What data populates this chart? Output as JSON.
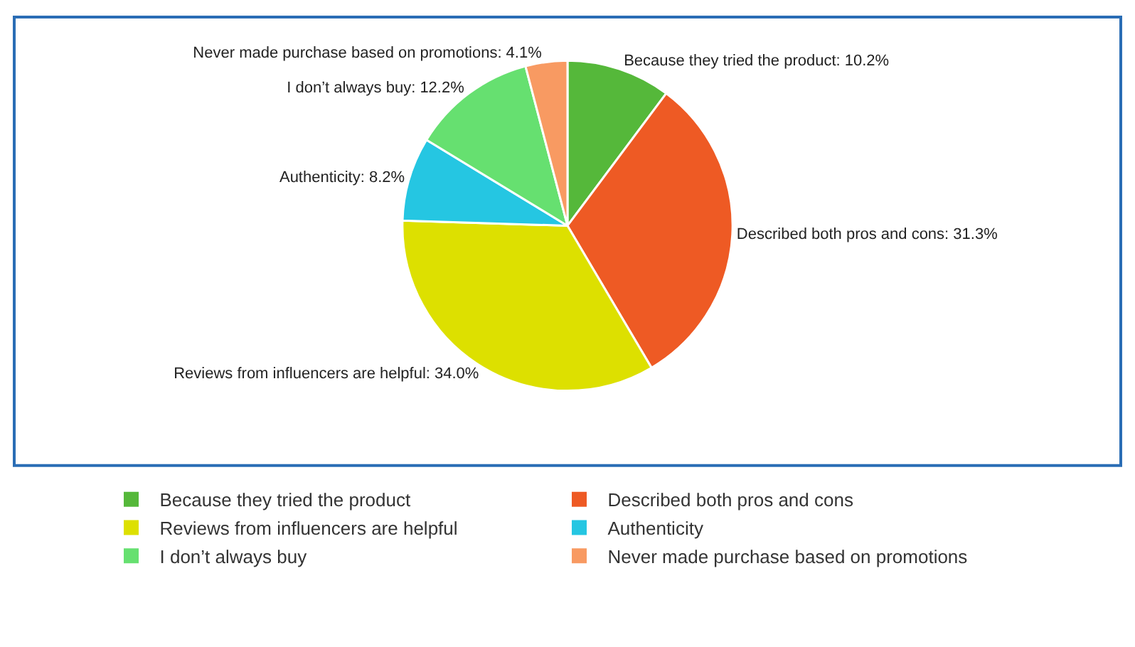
{
  "chart_data": {
    "type": "pie",
    "categories": [
      "Because they tried the product",
      "Described both pros and cons",
      "Reviews from influencers are helpful",
      "Authenticity",
      "I don’t always buy",
      "Never made purchase based on promotions"
    ],
    "values": [
      10.2,
      31.3,
      34.0,
      8.2,
      12.2,
      4.1
    ],
    "colors": [
      "#55b83a",
      "#ee5a24",
      "#dde000",
      "#25c6e2",
      "#66e070",
      "#f89a62"
    ],
    "value_labels": [
      "Because they tried the product: 10.2%",
      "Described both pros and cons: 31.3%",
      "Reviews from influencers are helpful: 34.0%",
      "Authenticity: 8.2%",
      "I don’t always buy: 12.2%",
      "Never made purchase based on promotions: 4.1%"
    ],
    "legend": "bottom"
  }
}
